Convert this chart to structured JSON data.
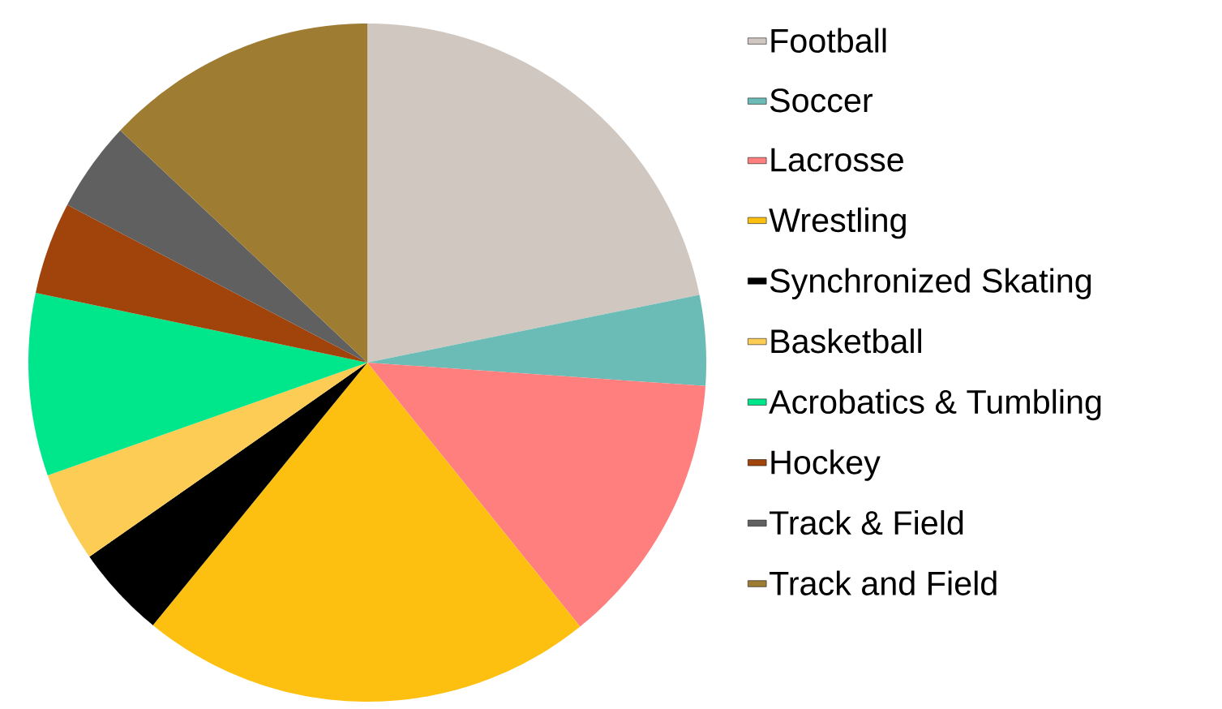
{
  "chart_data": {
    "type": "pie",
    "categories": [
      "Football",
      "Soccer",
      "Lacrosse",
      "Wrestling",
      "Synchronized  Skating",
      "Basketball",
      "Acrobatics & Tumbling",
      "Hockey",
      "Track & Field",
      "Track and Field"
    ],
    "values": [
      21.8,
      4.3,
      13.1,
      21.7,
      4.4,
      4.3,
      8.7,
      4.4,
      4.3,
      13.0
    ],
    "colors": [
      "#d0c8c0",
      "#6bbcb6",
      "#ff7f7e",
      "#fdc010",
      "#000000",
      "#fdcc55",
      "#00e68a",
      "#a0440c",
      "#606060",
      "#9e7d33"
    ],
    "legend": "right"
  }
}
